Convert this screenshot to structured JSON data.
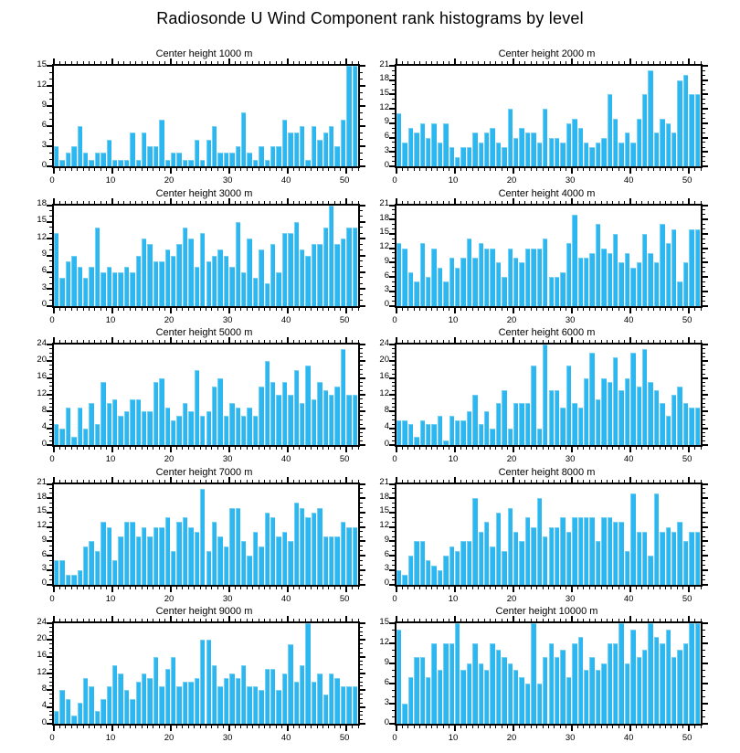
{
  "title": "Radiosonde U Wind Component rank histograms by level",
  "colors": {
    "bar": "#2CB7F1",
    "axis": "#000000",
    "background": "#FFFFFF"
  },
  "layout": {
    "rows": 5,
    "cols": 2,
    "grid": false,
    "legend": false,
    "bins_per_plot": 52
  },
  "chart_data": [
    {
      "type": "bar",
      "title": "Center height 1000 m",
      "center_height_m": 1000,
      "xlabel": "",
      "ylabel": "",
      "xlim": [
        0,
        52
      ],
      "xticks": [
        0,
        10,
        20,
        30,
        40,
        50
      ],
      "ylim": [
        0,
        15
      ],
      "ytick_step": 3,
      "values": [
        3,
        1,
        2,
        3,
        6,
        2,
        1,
        2,
        2,
        4,
        1,
        1,
        1,
        5,
        1,
        5,
        3,
        3,
        7,
        1,
        2,
        2,
        1,
        1,
        4,
        1,
        4,
        6,
        2,
        2,
        2,
        3,
        8,
        2,
        1,
        3,
        1,
        3,
        3,
        7,
        5,
        5,
        6,
        1,
        6,
        4,
        5,
        6,
        3,
        7,
        15,
        15
      ]
    },
    {
      "type": "bar",
      "title": "Center height 2000 m",
      "center_height_m": 2000,
      "xlabel": "",
      "ylabel": "",
      "xlim": [
        0,
        52
      ],
      "xticks": [
        0,
        10,
        20,
        30,
        40,
        50
      ],
      "ylim": [
        0,
        21
      ],
      "ytick_step": 3,
      "values": [
        11,
        5,
        8,
        7,
        9,
        6,
        9,
        5,
        9,
        4,
        2,
        4,
        4,
        7,
        5,
        7,
        8,
        5,
        4,
        12,
        6,
        8,
        7,
        7,
        5,
        12,
        6,
        6,
        5,
        9,
        10,
        8,
        5,
        4,
        5,
        6,
        15,
        10,
        5,
        7,
        5,
        10,
        15,
        20,
        7,
        10,
        9,
        7,
        18,
        19,
        15,
        15
      ]
    },
    {
      "type": "bar",
      "title": "Center height 3000 m",
      "center_height_m": 3000,
      "xlabel": "",
      "ylabel": "",
      "xlim": [
        0,
        52
      ],
      "xticks": [
        0,
        10,
        20,
        30,
        40,
        50
      ],
      "ylim": [
        0,
        18
      ],
      "ytick_step": 3,
      "values": [
        13,
        5,
        8,
        9,
        7,
        5,
        7,
        14,
        6,
        7,
        6,
        6,
        7,
        6,
        9,
        12,
        11,
        8,
        8,
        10,
        9,
        11,
        14,
        12,
        7,
        13,
        8,
        9,
        10,
        9,
        7,
        15,
        6,
        12,
        5,
        10,
        4,
        11,
        6,
        13,
        13,
        15,
        10,
        9,
        11,
        11,
        14,
        18,
        11,
        12,
        14,
        14
      ]
    },
    {
      "type": "bar",
      "title": "Center height 4000 m",
      "center_height_m": 4000,
      "xlabel": "",
      "ylabel": "",
      "xlim": [
        0,
        52
      ],
      "xticks": [
        0,
        10,
        20,
        30,
        40,
        50
      ],
      "ylim": [
        0,
        21
      ],
      "ytick_step": 3,
      "values": [
        13,
        12,
        7,
        5,
        13,
        6,
        12,
        8,
        5,
        10,
        8,
        10,
        14,
        10,
        13,
        12,
        12,
        9,
        6,
        12,
        10,
        9,
        12,
        12,
        12,
        14,
        6,
        6,
        7,
        13,
        19,
        10,
        10,
        11,
        17,
        12,
        11,
        15,
        9,
        11,
        8,
        9,
        15,
        11,
        9,
        17,
        13,
        16,
        5,
        9,
        16,
        16
      ]
    },
    {
      "type": "bar",
      "title": "Center height 5000 m",
      "center_height_m": 5000,
      "xlabel": "",
      "ylabel": "",
      "xlim": [
        0,
        52
      ],
      "xticks": [
        0,
        10,
        20,
        30,
        40,
        50
      ],
      "ylim": [
        0,
        24
      ],
      "ytick_step": 4,
      "values": [
        5,
        4,
        9,
        2,
        9,
        4,
        10,
        5,
        15,
        10,
        11,
        7,
        8,
        11,
        11,
        8,
        8,
        15,
        16,
        9,
        6,
        7,
        10,
        8,
        18,
        7,
        8,
        14,
        16,
        7,
        10,
        9,
        7,
        9,
        7,
        14,
        20,
        15,
        12,
        15,
        12,
        18,
        10,
        19,
        11,
        15,
        13,
        12,
        14,
        23,
        12,
        12
      ]
    },
    {
      "type": "bar",
      "title": "Center height 6000 m",
      "center_height_m": 6000,
      "xlabel": "",
      "ylabel": "",
      "xlim": [
        0,
        52
      ],
      "xticks": [
        0,
        10,
        20,
        30,
        40,
        50
      ],
      "ylim": [
        0,
        24
      ],
      "ytick_step": 4,
      "values": [
        6,
        6,
        5,
        2,
        6,
        5,
        5,
        7,
        1,
        7,
        6,
        6,
        8,
        12,
        5,
        8,
        4,
        10,
        13,
        4,
        10,
        10,
        10,
        19,
        4,
        24,
        13,
        13,
        9,
        19,
        10,
        9,
        16,
        22,
        11,
        16,
        15,
        21,
        13,
        16,
        22,
        14,
        23,
        15,
        13,
        10,
        7,
        12,
        14,
        10,
        9,
        9
      ]
    },
    {
      "type": "bar",
      "title": "Center height 7000 m",
      "center_height_m": 7000,
      "xlabel": "",
      "ylabel": "",
      "xlim": [
        0,
        52
      ],
      "xticks": [
        0,
        10,
        20,
        30,
        40,
        50
      ],
      "ylim": [
        0,
        21
      ],
      "ytick_step": 3,
      "values": [
        5,
        5,
        2,
        2,
        3,
        8,
        9,
        7,
        13,
        12,
        5,
        10,
        13,
        13,
        10,
        12,
        10,
        12,
        12,
        14,
        7,
        13,
        14,
        12,
        11,
        20,
        7,
        13,
        10,
        8,
        16,
        16,
        9,
        6,
        11,
        8,
        15,
        14,
        10,
        11,
        9,
        17,
        16,
        14,
        15,
        16,
        10,
        10,
        10,
        13,
        12,
        12
      ]
    },
    {
      "type": "bar",
      "title": "Center height 8000 m",
      "center_height_m": 8000,
      "xlabel": "",
      "ylabel": "",
      "xlim": [
        0,
        52
      ],
      "xticks": [
        0,
        10,
        20,
        30,
        40,
        50
      ],
      "ylim": [
        0,
        21
      ],
      "ytick_step": 3,
      "values": [
        3,
        2,
        6,
        9,
        9,
        5,
        4,
        3,
        6,
        8,
        7,
        9,
        9,
        18,
        11,
        13,
        8,
        15,
        7,
        16,
        11,
        9,
        14,
        12,
        18,
        10,
        12,
        12,
        14,
        11,
        14,
        14,
        14,
        14,
        9,
        14,
        14,
        13,
        13,
        7,
        19,
        11,
        11,
        6,
        19,
        11,
        12,
        11,
        13,
        9,
        11,
        11
      ]
    },
    {
      "type": "bar",
      "title": "Center height 9000 m",
      "center_height_m": 9000,
      "xlabel": "",
      "ylabel": "",
      "xlim": [
        0,
        52
      ],
      "xticks": [
        0,
        10,
        20,
        30,
        40,
        50
      ],
      "ylim": [
        0,
        24
      ],
      "ytick_step": 4,
      "values": [
        3,
        8,
        6,
        2,
        5,
        11,
        9,
        3,
        6,
        9,
        14,
        12,
        8,
        6,
        10,
        12,
        11,
        16,
        9,
        13,
        16,
        9,
        10,
        10,
        11,
        20,
        20,
        14,
        9,
        11,
        12,
        11,
        14,
        9,
        9,
        8,
        13,
        13,
        8,
        12,
        19,
        10,
        14,
        24,
        10,
        12,
        7,
        12,
        11,
        9,
        9,
        9
      ]
    },
    {
      "type": "bar",
      "title": "Center height 10000 m",
      "center_height_m": 10000,
      "xlabel": "",
      "ylabel": "",
      "xlim": [
        0,
        52
      ],
      "xticks": [
        0,
        10,
        20,
        30,
        40,
        50
      ],
      "ylim": [
        0,
        15
      ],
      "ytick_step": 3,
      "values": [
        14,
        3,
        7,
        10,
        10,
        7,
        12,
        8,
        12,
        12,
        15,
        8,
        9,
        12,
        9,
        8,
        12,
        11,
        10,
        9,
        8,
        7,
        6,
        15,
        6,
        10,
        12,
        10,
        11,
        7,
        12,
        13,
        8,
        10,
        8,
        9,
        12,
        12,
        15,
        9,
        14,
        10,
        11,
        15,
        13,
        12,
        14,
        10,
        11,
        12,
        15,
        15
      ]
    }
  ]
}
